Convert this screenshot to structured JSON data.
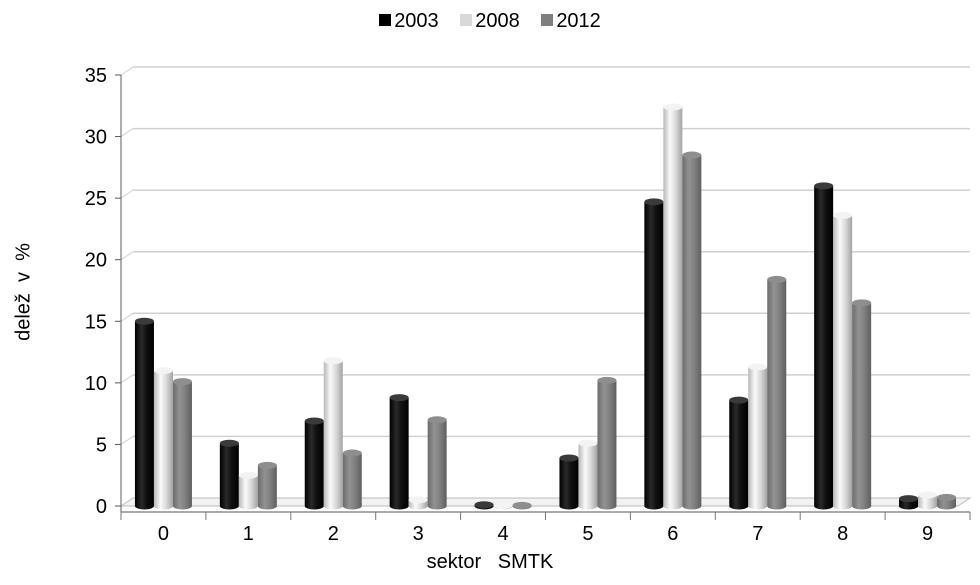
{
  "chart_data": {
    "type": "bar",
    "title": "",
    "xlabel": "sektor   SMTK",
    "ylabel": "delež  v  %",
    "categories": [
      "0",
      "1",
      "2",
      "3",
      "4",
      "5",
      "6",
      "7",
      "8",
      "9"
    ],
    "series": [
      {
        "name": "2003",
        "color": "#000000",
        "values": [
          15.0,
          5.1,
          6.9,
          8.8,
          0.1,
          3.9,
          24.7,
          8.6,
          26.0,
          0.6
        ]
      },
      {
        "name": "2008",
        "color": "#d9d9d9",
        "values": [
          11.0,
          2.5,
          11.8,
          0.5,
          0.05,
          5.1,
          32.4,
          11.3,
          23.6,
          0.9
        ]
      },
      {
        "name": "2012",
        "color": "#7f7f7f",
        "values": [
          10.1,
          3.3,
          4.3,
          7.0,
          0.05,
          10.2,
          28.5,
          18.4,
          16.5,
          0.7
        ]
      }
    ],
    "ylim": [
      0,
      35
    ],
    "yticks": [
      0,
      5,
      10,
      15,
      20,
      25,
      30,
      35
    ],
    "grid": true,
    "legend": "top-center",
    "style": "3d-cylinder"
  }
}
